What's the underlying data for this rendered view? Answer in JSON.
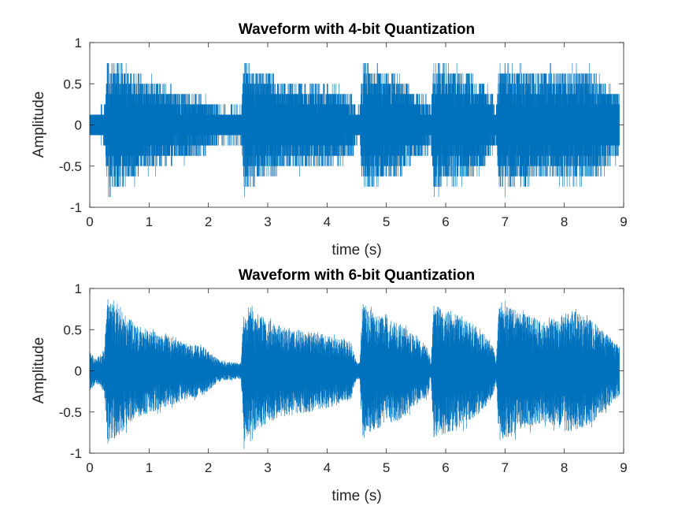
{
  "chart_data": [
    {
      "type": "line",
      "title": "Waveform with 4-bit Quantization",
      "xlabel": "time (s)",
      "ylabel": "Amplitude",
      "xlim": [
        0,
        9
      ],
      "ylim": [
        -1,
        1
      ],
      "x_ticks": [
        0,
        1,
        2,
        3,
        4,
        5,
        6,
        7,
        8,
        9
      ],
      "y_ticks": [
        -1,
        -0.5,
        0,
        0.5,
        1
      ],
      "x_tick_labels": [
        "0",
        "1",
        "2",
        "3",
        "4",
        "5",
        "6",
        "7",
        "8",
        "9"
      ],
      "y_tick_labels": [
        "-1",
        "-0.5",
        "0",
        "0.5",
        "1"
      ],
      "grid": false,
      "quantization_bits": 4,
      "duration_s": 8.93,
      "series_color": "#0072BD",
      "envelope": {
        "x": [
          0,
          0.1,
          0.2,
          0.25,
          0.3,
          0.5,
          0.8,
          1.2,
          1.6,
          1.9,
          2.2,
          2.5,
          2.55,
          2.6,
          2.8,
          3.2,
          3.6,
          4.0,
          4.4,
          4.5,
          4.55,
          4.6,
          4.8,
          5.2,
          5.6,
          5.7,
          5.75,
          5.8,
          6.2,
          6.6,
          6.8,
          6.85,
          6.9,
          7.3,
          7.7,
          8.1,
          8.5,
          8.93
        ],
        "y": [
          0.15,
          0.15,
          0.2,
          0.2,
          0.82,
          0.75,
          0.6,
          0.5,
          0.4,
          0.35,
          0.2,
          0.2,
          0.2,
          0.82,
          0.7,
          0.55,
          0.5,
          0.5,
          0.4,
          0.2,
          0.2,
          0.8,
          0.7,
          0.6,
          0.35,
          0.35,
          0.2,
          0.75,
          0.7,
          0.55,
          0.35,
          0.2,
          0.75,
          0.7,
          0.65,
          0.7,
          0.65,
          0.35
        ]
      }
    },
    {
      "type": "line",
      "title": "Waveform with 6-bit Quantization",
      "xlabel": "time (s)",
      "ylabel": "Amplitude",
      "xlim": [
        0,
        9
      ],
      "ylim": [
        -1,
        1
      ],
      "x_ticks": [
        0,
        1,
        2,
        3,
        4,
        5,
        6,
        7,
        8,
        9
      ],
      "y_ticks": [
        -1,
        -0.5,
        0,
        0.5,
        1
      ],
      "x_tick_labels": [
        "0",
        "1",
        "2",
        "3",
        "4",
        "5",
        "6",
        "7",
        "8",
        "9"
      ],
      "y_tick_labels": [
        "-1",
        "-0.5",
        "0",
        "0.5",
        "1"
      ],
      "grid": false,
      "quantization_bits": 6,
      "duration_s": 8.93,
      "series_color": "#0072BD",
      "envelope": {
        "x": [
          0,
          0.1,
          0.2,
          0.25,
          0.3,
          0.5,
          0.8,
          1.2,
          1.6,
          1.9,
          2.2,
          2.5,
          2.55,
          2.6,
          2.8,
          3.2,
          3.6,
          4.0,
          4.4,
          4.5,
          4.55,
          4.6,
          4.8,
          5.2,
          5.6,
          5.7,
          5.75,
          5.8,
          6.2,
          6.6,
          6.8,
          6.85,
          6.9,
          7.3,
          7.7,
          8.1,
          8.5,
          8.93
        ],
        "y": [
          0.25,
          0.15,
          0.2,
          0.3,
          0.88,
          0.75,
          0.55,
          0.45,
          0.35,
          0.3,
          0.12,
          0.1,
          0.1,
          0.85,
          0.7,
          0.55,
          0.5,
          0.45,
          0.35,
          0.1,
          0.1,
          0.85,
          0.7,
          0.6,
          0.35,
          0.3,
          0.1,
          0.8,
          0.7,
          0.5,
          0.3,
          0.1,
          0.85,
          0.7,
          0.6,
          0.75,
          0.6,
          0.3
        ]
      }
    }
  ]
}
